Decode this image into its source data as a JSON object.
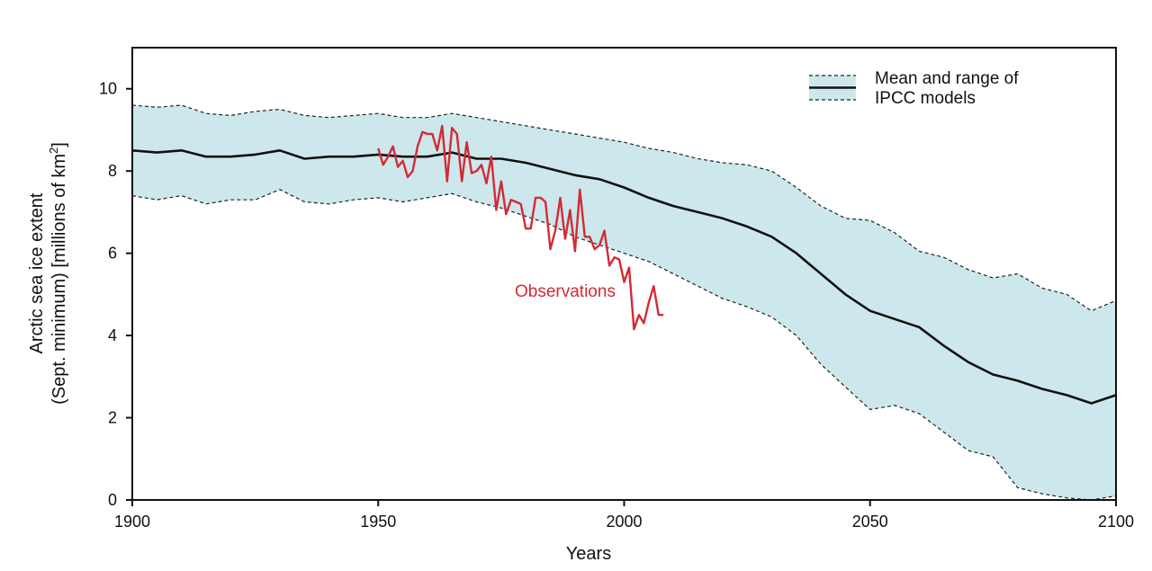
{
  "chart_data": {
    "type": "line",
    "xlabel": "Years",
    "ylabel_line1": "Arctic sea ice extent",
    "ylabel_line2_main": "(Sept. minimum) [millions of km",
    "ylabel_line2_sup": "2",
    "ylabel_line2_end": "]",
    "xlim": [
      1900,
      2100
    ],
    "ylim": [
      0,
      11
    ],
    "x_ticks": [
      "1900",
      "1950",
      "2000",
      "2050",
      "2100"
    ],
    "y_ticks": [
      "0",
      "2",
      "4",
      "6",
      "8",
      "10"
    ],
    "grid": false,
    "legend": {
      "position": "top-right",
      "line1": "Mean and range of",
      "line2": "IPCC models"
    },
    "annotation": "Observations",
    "colors": {
      "band_fill": "#cde8ec",
      "band_edge": "#222222",
      "mean": "#111111",
      "observations": "#d42a35",
      "axis": "#111111"
    },
    "series": [
      {
        "name": "Mean and range of IPCC models",
        "kind": "mean",
        "x": [
          1900,
          1905,
          1910,
          1915,
          1920,
          1925,
          1930,
          1935,
          1940,
          1945,
          1950,
          1955,
          1960,
          1965,
          1970,
          1975,
          1980,
          1985,
          1990,
          1995,
          2000,
          2005,
          2010,
          2015,
          2020,
          2025,
          2030,
          2035,
          2040,
          2045,
          2050,
          2055,
          2060,
          2065,
          2070,
          2075,
          2080,
          2085,
          2090,
          2095,
          2100
        ],
        "values": [
          8.5,
          8.45,
          8.5,
          8.35,
          8.35,
          8.4,
          8.5,
          8.3,
          8.35,
          8.35,
          8.4,
          8.35,
          8.35,
          8.45,
          8.3,
          8.3,
          8.2,
          8.05,
          7.9,
          7.8,
          7.6,
          7.35,
          7.15,
          7.0,
          6.85,
          6.65,
          6.4,
          6.0,
          5.5,
          5.0,
          4.6,
          4.4,
          4.2,
          3.75,
          3.35,
          3.05,
          2.9,
          2.7,
          2.55,
          2.35,
          2.55
        ]
      },
      {
        "name": "",
        "kind": "band_upper",
        "x": [
          1900,
          1905,
          1910,
          1915,
          1920,
          1925,
          1930,
          1935,
          1940,
          1945,
          1950,
          1955,
          1960,
          1965,
          1970,
          1975,
          1980,
          1985,
          1990,
          1995,
          2000,
          2005,
          2010,
          2015,
          2020,
          2025,
          2030,
          2035,
          2040,
          2045,
          2050,
          2055,
          2060,
          2065,
          2070,
          2075,
          2080,
          2085,
          2090,
          2095,
          2100
        ],
        "values": [
          9.6,
          9.55,
          9.6,
          9.4,
          9.35,
          9.45,
          9.5,
          9.35,
          9.3,
          9.35,
          9.4,
          9.3,
          9.3,
          9.4,
          9.3,
          9.2,
          9.1,
          9.0,
          8.9,
          8.8,
          8.7,
          8.55,
          8.45,
          8.3,
          8.2,
          8.15,
          8.0,
          7.6,
          7.15,
          6.85,
          6.8,
          6.5,
          6.05,
          5.9,
          5.6,
          5.4,
          5.5,
          5.15,
          5.0,
          4.6,
          4.85
        ]
      },
      {
        "name": "",
        "kind": "band_lower",
        "x": [
          1900,
          1905,
          1910,
          1915,
          1920,
          1925,
          1930,
          1935,
          1940,
          1945,
          1950,
          1955,
          1960,
          1965,
          1970,
          1975,
          1980,
          1985,
          1990,
          1995,
          2000,
          2005,
          2010,
          2015,
          2020,
          2025,
          2030,
          2035,
          2040,
          2045,
          2050,
          2055,
          2060,
          2065,
          2070,
          2075,
          2080,
          2085,
          2090,
          2095,
          2100
        ],
        "values": [
          7.4,
          7.3,
          7.4,
          7.2,
          7.3,
          7.3,
          7.55,
          7.25,
          7.2,
          7.3,
          7.35,
          7.25,
          7.35,
          7.45,
          7.25,
          7.1,
          6.9,
          6.7,
          6.4,
          6.2,
          6.0,
          5.8,
          5.5,
          5.2,
          4.9,
          4.7,
          4.45,
          4.0,
          3.3,
          2.75,
          2.2,
          2.3,
          2.1,
          1.65,
          1.2,
          1.05,
          0.3,
          0.15,
          0.05,
          0.0,
          0.1
        ]
      },
      {
        "name": "Observations",
        "kind": "observations",
        "x": [
          1950,
          1951,
          1952,
          1953,
          1954,
          1955,
          1956,
          1957,
          1958,
          1959,
          1960,
          1961,
          1962,
          1963,
          1964,
          1965,
          1966,
          1967,
          1968,
          1969,
          1970,
          1971,
          1972,
          1973,
          1974,
          1975,
          1976,
          1977,
          1978,
          1979,
          1980,
          1981,
          1982,
          1983,
          1984,
          1985,
          1986,
          1987,
          1988,
          1989,
          1990,
          1991,
          1992,
          1993,
          1994,
          1995,
          1996,
          1997,
          1998,
          1999,
          2000,
          2001,
          2002,
          2003,
          2004,
          2005,
          2006,
          2007,
          2008
        ],
        "values": [
          8.55,
          8.15,
          8.35,
          8.6,
          8.1,
          8.25,
          7.85,
          8.0,
          8.6,
          8.95,
          8.9,
          8.9,
          8.5,
          9.1,
          7.75,
          9.05,
          8.9,
          7.75,
          8.7,
          7.95,
          8.0,
          8.15,
          7.7,
          8.35,
          7.05,
          7.75,
          6.95,
          7.3,
          7.25,
          7.2,
          6.6,
          6.6,
          7.35,
          7.35,
          7.25,
          6.1,
          6.55,
          7.35,
          6.35,
          7.05,
          6.05,
          7.55,
          6.4,
          6.4,
          6.1,
          6.2,
          6.55,
          5.7,
          5.9,
          5.85,
          5.3,
          5.65,
          4.15,
          4.5,
          4.3,
          4.8,
          5.2,
          4.5,
          4.5
        ]
      }
    ]
  }
}
